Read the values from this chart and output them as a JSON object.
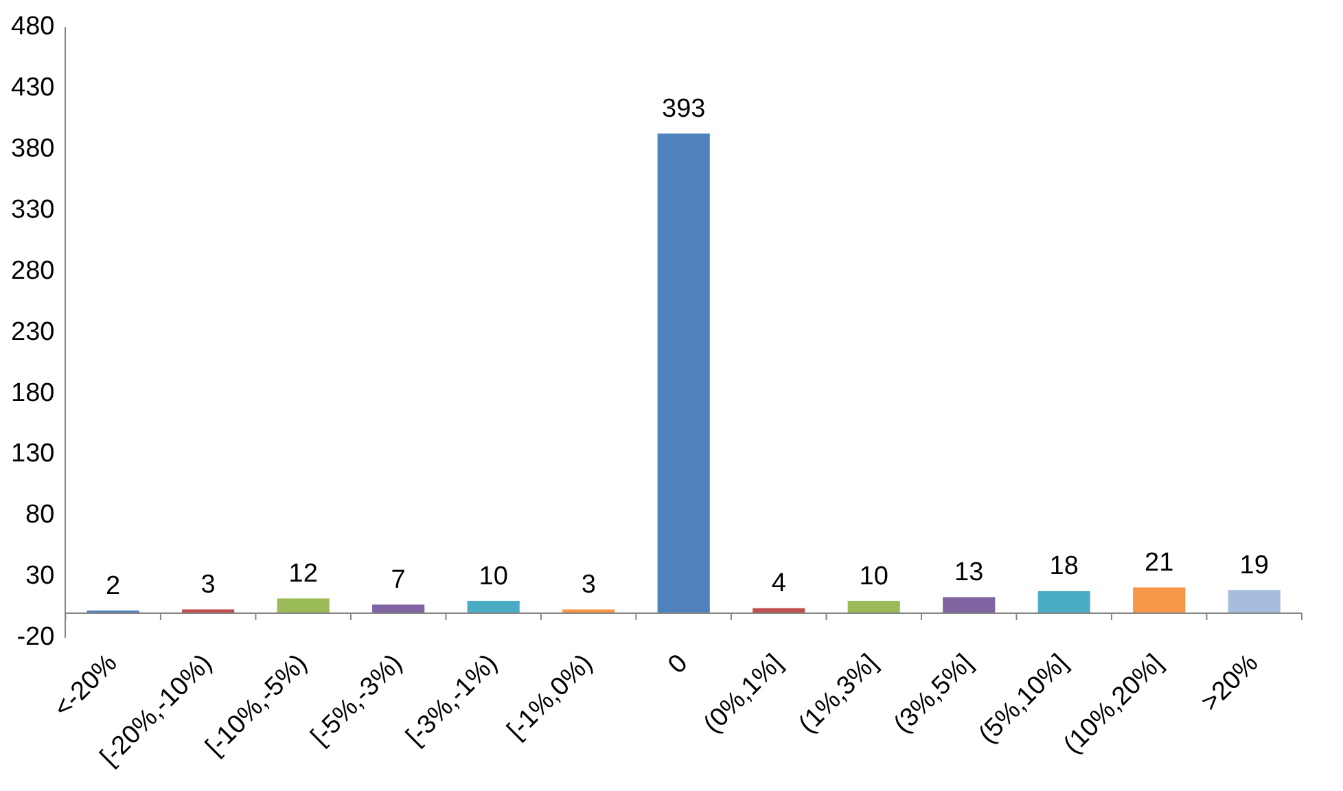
{
  "chart_data": {
    "type": "bar",
    "categories": [
      "<-20%",
      "[-20%,-10%)",
      "[-10%,-5%)",
      "[-5%,-3%)",
      "[-3%,-1%)",
      "[-1%,0%)",
      "0",
      "(0%,1%]",
      "(1%,3%]",
      "(3%,5%]",
      "(5%,10%]",
      "(10%,20%]",
      ">20%"
    ],
    "values": [
      2,
      3,
      12,
      7,
      10,
      3,
      393,
      4,
      10,
      13,
      18,
      21,
      19
    ],
    "colors": [
      "#4f81bd",
      "#c0504d",
      "#9bbb59",
      "#8064a2",
      "#4bacc6",
      "#f79646",
      "#4f81bd",
      "#c0504d",
      "#9bbb59",
      "#8064a2",
      "#4bacc6",
      "#f79646",
      "#a7bde0"
    ],
    "ylim": [
      -20,
      480
    ],
    "yticks": [
      -20,
      30,
      80,
      130,
      180,
      230,
      280,
      330,
      380,
      430,
      480
    ],
    "grid": false,
    "legend": false,
    "data_labels": true
  }
}
